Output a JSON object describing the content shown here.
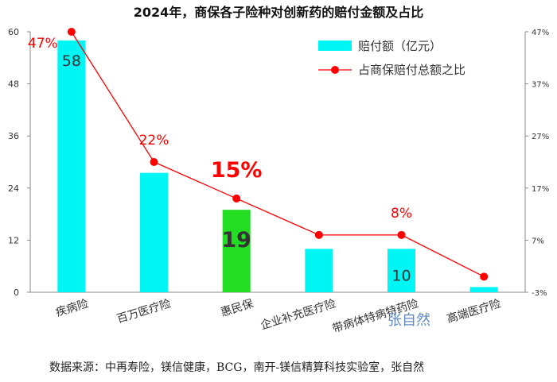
{
  "source_note": "数据来源：中再寿险，镁信健康，BCG，南开-镁信精算科技实验室，张自然",
  "watermark": "张自然",
  "colors": {
    "bar": "#00f5f5",
    "bar_highlight": "#22dd22",
    "line": "#ff0000",
    "label_red": "#ff0000"
  },
  "chart_data": {
    "type": "bar",
    "title": "2024年，商保各子险种对创新药的赔付金额及占比",
    "xlabel": "",
    "ylabel": "",
    "categories": [
      "疾病险",
      "百万医疗险",
      "惠民保",
      "企业补充医疗险",
      "带病体特病特药险",
      "高端医疗险"
    ],
    "series": [
      {
        "name": "赔付额（亿元）",
        "type": "bar",
        "axis": "left",
        "values": [
          58,
          27.5,
          19,
          10,
          10,
          1.2
        ],
        "labels": [
          "58",
          "",
          "19",
          "",
          "10",
          ""
        ],
        "highlight_index": 2
      },
      {
        "name": "占商保赔付总额之比",
        "type": "line",
        "axis": "right",
        "unit": "%",
        "values": [
          47,
          22,
          15,
          8,
          8,
          0
        ],
        "labels": [
          "47%",
          "22%",
          "15%",
          "",
          "8%",
          ""
        ]
      }
    ],
    "ylim": [
      0,
      60
    ],
    "yticks": [
      "0",
      "12",
      "24",
      "36",
      "48",
      "60"
    ],
    "y2lim": [
      -3,
      47
    ],
    "y2ticks": [
      "-3%",
      "7%",
      "17%",
      "27%",
      "37%",
      "47%"
    ],
    "legend_position": "top-right",
    "grid": false
  }
}
